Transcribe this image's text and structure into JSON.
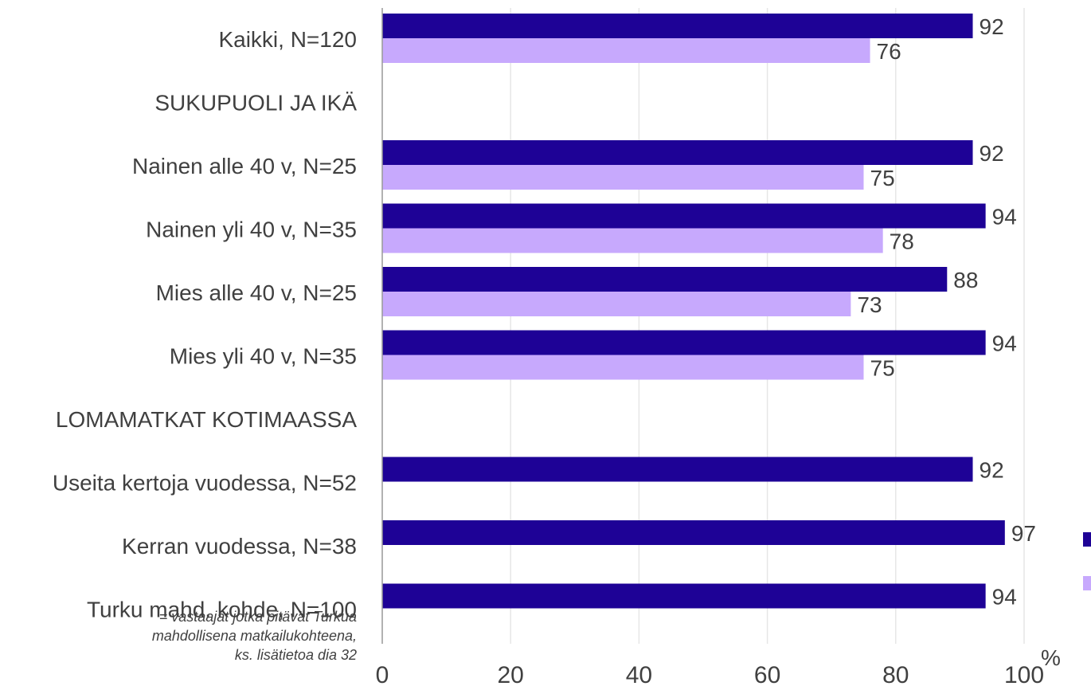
{
  "chart_data": {
    "type": "bar",
    "orientation": "horizontal",
    "categories": [
      "Kaikki, N=120",
      "SUKUPUOLI JA IKÄ",
      "Nainen alle 40 v, N=25",
      "Nainen yli 40 v, N=35",
      "Mies alle 40 v, N=25",
      "Mies yli 40 v, N=35",
      "LOMAMATKAT KOTIMAASSA",
      "Useita kertoja vuodessa, N=52",
      "Kerran vuodessa, N=38",
      "Turku mahd. kohde, N=100"
    ],
    "series": [
      {
        "color": "#1e0296",
        "values": [
          92,
          null,
          92,
          94,
          88,
          94,
          null,
          92,
          97,
          94
        ]
      },
      {
        "color": "#c7a9fd",
        "values": [
          76,
          null,
          75,
          78,
          73,
          75,
          null,
          null,
          null,
          null
        ]
      }
    ],
    "xlim": [
      0,
      100
    ],
    "xticks": [
      "0",
      "20",
      "40",
      "60",
      "80",
      "100"
    ],
    "x_unit": "%",
    "grid": true,
    "legend_position": "right",
    "footnote": [
      "= vastaajat jotka pitävät Turkua",
      "mahdollisena matkailukohteena,",
      "ks. lisätietoa dia 32"
    ]
  }
}
